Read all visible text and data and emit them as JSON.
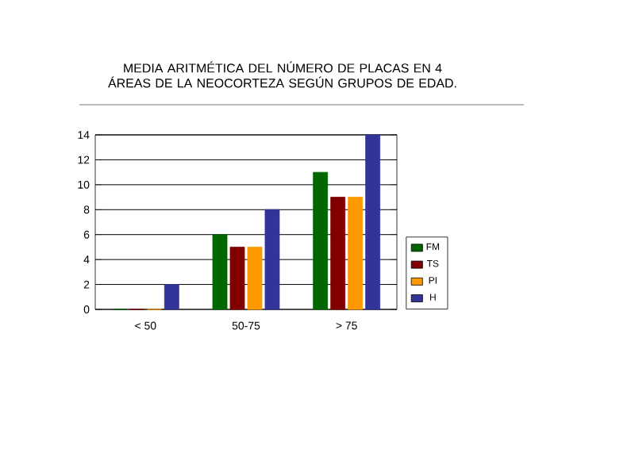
{
  "chart_data": {
    "type": "bar",
    "title": "MEDIA ARITMÉTICA DEL NÚMERO DE PLACAS EN 4 ÁREAS DE LA NEOCORTEZA SEGÚN GRUPOS DE EDAD.",
    "categories": [
      "< 50",
      "50-75",
      "> 75"
    ],
    "series": [
      {
        "name": "FM",
        "color": "#006600",
        "values": [
          0,
          6,
          11
        ]
      },
      {
        "name": "TS",
        "color": "#800000",
        "values": [
          0,
          5,
          9
        ]
      },
      {
        "name": "PI",
        "color": "#ff9900",
        "values": [
          0,
          5,
          9
        ]
      },
      {
        "name": "H",
        "color": "#333399",
        "values": [
          2,
          8,
          14
        ]
      }
    ],
    "ylim": [
      0,
      14
    ],
    "yticks": [
      0,
      2,
      4,
      6,
      8,
      10,
      12,
      14
    ],
    "grid": "y",
    "legend": "right"
  }
}
